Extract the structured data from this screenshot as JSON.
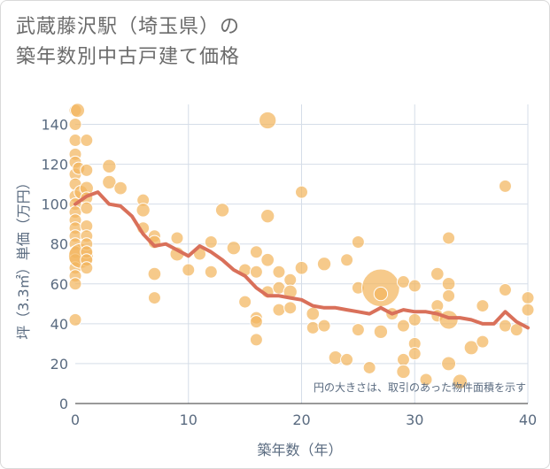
{
  "title_line1": "武蔵藤沢駅（埼玉県）の",
  "title_line2": "築年数別中古戸建て価格",
  "chart_data": {
    "type": "scatter",
    "title": "武蔵藤沢駅（埼玉県）の築年数別中古戸建て価格",
    "xlabel": "築年数（年）",
    "ylabel": "坪（3.3㎡）単価（万円）",
    "xlim": [
      0,
      40
    ],
    "ylim": [
      0,
      150
    ],
    "xticks": [
      "0",
      "10",
      "20",
      "30",
      "40"
    ],
    "yticks": [
      "0",
      "20",
      "40",
      "60",
      "80",
      "100",
      "120",
      "140"
    ],
    "note": "円の大きさは、取引のあった物件面積を示す",
    "bubble_color": "#f2b65e",
    "line_color": "#d9705a",
    "bubbles": [
      {
        "x": 0,
        "y": 147,
        "s": 1
      },
      {
        "x": 0,
        "y": 140,
        "s": 1
      },
      {
        "x": 0,
        "y": 132,
        "s": 1
      },
      {
        "x": 0,
        "y": 125,
        "s": 1
      },
      {
        "x": 0,
        "y": 121,
        "s": 1
      },
      {
        "x": 0,
        "y": 115,
        "s": 1
      },
      {
        "x": 0,
        "y": 110,
        "s": 1
      },
      {
        "x": 0,
        "y": 104,
        "s": 1
      },
      {
        "x": 0,
        "y": 100,
        "s": 1
      },
      {
        "x": 0,
        "y": 96,
        "s": 1
      },
      {
        "x": 0,
        "y": 92,
        "s": 1
      },
      {
        "x": 0,
        "y": 88,
        "s": 1
      },
      {
        "x": 0,
        "y": 84,
        "s": 1
      },
      {
        "x": 0,
        "y": 80,
        "s": 1
      },
      {
        "x": 0,
        "y": 76,
        "s": 1
      },
      {
        "x": 0,
        "y": 72,
        "s": 1
      },
      {
        "x": 0,
        "y": 68,
        "s": 1
      },
      {
        "x": 0,
        "y": 64,
        "s": 1
      },
      {
        "x": 0,
        "y": 60,
        "s": 1
      },
      {
        "x": 0,
        "y": 42,
        "s": 1
      },
      {
        "x": 0.2,
        "y": 147,
        "s": 1.3
      },
      {
        "x": 0.3,
        "y": 118,
        "s": 1
      },
      {
        "x": 0.5,
        "y": 106,
        "s": 1.2
      },
      {
        "x": 0.5,
        "y": 74,
        "s": 4
      },
      {
        "x": 1,
        "y": 132,
        "s": 1
      },
      {
        "x": 1,
        "y": 117,
        "s": 1
      },
      {
        "x": 1,
        "y": 108,
        "s": 1.2
      },
      {
        "x": 1,
        "y": 103,
        "s": 1
      },
      {
        "x": 1,
        "y": 98,
        "s": 1
      },
      {
        "x": 1,
        "y": 89,
        "s": 1
      },
      {
        "x": 1,
        "y": 84,
        "s": 1
      },
      {
        "x": 1,
        "y": 80,
        "s": 1
      },
      {
        "x": 1,
        "y": 76,
        "s": 1
      },
      {
        "x": 1,
        "y": 72,
        "s": 1
      },
      {
        "x": 1,
        "y": 68,
        "s": 1
      },
      {
        "x": 3,
        "y": 119,
        "s": 1.2
      },
      {
        "x": 3,
        "y": 111,
        "s": 1.2
      },
      {
        "x": 4,
        "y": 108,
        "s": 1.1
      },
      {
        "x": 6,
        "y": 102,
        "s": 1
      },
      {
        "x": 6,
        "y": 97,
        "s": 1.2
      },
      {
        "x": 6,
        "y": 88,
        "s": 1
      },
      {
        "x": 7,
        "y": 84,
        "s": 1
      },
      {
        "x": 7,
        "y": 81,
        "s": 1.1
      },
      {
        "x": 7,
        "y": 65,
        "s": 1.1
      },
      {
        "x": 7,
        "y": 53,
        "s": 1
      },
      {
        "x": 9,
        "y": 83,
        "s": 1
      },
      {
        "x": 9,
        "y": 75,
        "s": 1.3
      },
      {
        "x": 10,
        "y": 67,
        "s": 1
      },
      {
        "x": 11,
        "y": 75,
        "s": 1
      },
      {
        "x": 12,
        "y": 81,
        "s": 1
      },
      {
        "x": 12,
        "y": 66,
        "s": 1
      },
      {
        "x": 13,
        "y": 97,
        "s": 1.2
      },
      {
        "x": 14,
        "y": 78,
        "s": 1.2
      },
      {
        "x": 15,
        "y": 67,
        "s": 1
      },
      {
        "x": 15,
        "y": 51,
        "s": 1
      },
      {
        "x": 16,
        "y": 76,
        "s": 1
      },
      {
        "x": 16,
        "y": 66,
        "s": 1
      },
      {
        "x": 16,
        "y": 43,
        "s": 1
      },
      {
        "x": 16,
        "y": 41,
        "s": 1
      },
      {
        "x": 16,
        "y": 32,
        "s": 1
      },
      {
        "x": 17,
        "y": 142,
        "s": 1.9
      },
      {
        "x": 17,
        "y": 94,
        "s": 1.2
      },
      {
        "x": 17,
        "y": 72,
        "s": 1.1
      },
      {
        "x": 17,
        "y": 56,
        "s": 1
      },
      {
        "x": 18,
        "y": 66,
        "s": 1
      },
      {
        "x": 18,
        "y": 58,
        "s": 1
      },
      {
        "x": 18,
        "y": 47,
        "s": 1
      },
      {
        "x": 19,
        "y": 62,
        "s": 1
      },
      {
        "x": 19,
        "y": 56,
        "s": 1.2
      },
      {
        "x": 19,
        "y": 48,
        "s": 1
      },
      {
        "x": 20,
        "y": 106,
        "s": 1
      },
      {
        "x": 20,
        "y": 68,
        "s": 1.1
      },
      {
        "x": 21,
        "y": 45,
        "s": 1.1
      },
      {
        "x": 21,
        "y": 38,
        "s": 1
      },
      {
        "x": 22,
        "y": 70,
        "s": 1.2
      },
      {
        "x": 22,
        "y": 39,
        "s": 1
      },
      {
        "x": 23,
        "y": 23,
        "s": 1.2
      },
      {
        "x": 24,
        "y": 72,
        "s": 1
      },
      {
        "x": 24,
        "y": 22,
        "s": 1
      },
      {
        "x": 25,
        "y": 81,
        "s": 1
      },
      {
        "x": 25,
        "y": 58,
        "s": 1
      },
      {
        "x": 25,
        "y": 37,
        "s": 1
      },
      {
        "x": 26,
        "y": 18,
        "s": 1
      },
      {
        "x": 27,
        "y": 58,
        "s": 9.3
      },
      {
        "x": 27,
        "y": 55,
        "s": 1.2
      },
      {
        "x": 27,
        "y": 36,
        "s": 1.2
      },
      {
        "x": 28,
        "y": 45,
        "s": 1
      },
      {
        "x": 29,
        "y": 61,
        "s": 1
      },
      {
        "x": 29,
        "y": 39,
        "s": 1
      },
      {
        "x": 29,
        "y": 22,
        "s": 1
      },
      {
        "x": 29,
        "y": 16,
        "s": 1.2
      },
      {
        "x": 30,
        "y": 59,
        "s": 1
      },
      {
        "x": 30,
        "y": 42,
        "s": 1
      },
      {
        "x": 30,
        "y": 30,
        "s": 1
      },
      {
        "x": 30,
        "y": 25,
        "s": 1
      },
      {
        "x": 31,
        "y": 12,
        "s": 1
      },
      {
        "x": 32,
        "y": 65,
        "s": 1.1
      },
      {
        "x": 32,
        "y": 49,
        "s": 1
      },
      {
        "x": 32,
        "y": 44,
        "s": 1
      },
      {
        "x": 33,
        "y": 83,
        "s": 1
      },
      {
        "x": 33,
        "y": 60,
        "s": 1.1
      },
      {
        "x": 33,
        "y": 54,
        "s": 1
      },
      {
        "x": 33,
        "y": 42,
        "s": 2.3
      },
      {
        "x": 33,
        "y": 20,
        "s": 1.3
      },
      {
        "x": 34,
        "y": 11,
        "s": 1.4
      },
      {
        "x": 35,
        "y": 28,
        "s": 1.3
      },
      {
        "x": 36,
        "y": 49,
        "s": 1
      },
      {
        "x": 36,
        "y": 31,
        "s": 1
      },
      {
        "x": 38,
        "y": 109,
        "s": 1
      },
      {
        "x": 38,
        "y": 57,
        "s": 1
      },
      {
        "x": 38,
        "y": 39,
        "s": 1
      },
      {
        "x": 39,
        "y": 37,
        "s": 1
      },
      {
        "x": 40,
        "y": 53,
        "s": 1
      },
      {
        "x": 40,
        "y": 47,
        "s": 1
      }
    ],
    "line": {
      "x": [
        0,
        1,
        2,
        3,
        4,
        5,
        6,
        7,
        8,
        9,
        10,
        11,
        12,
        13,
        14,
        15,
        16,
        17,
        18,
        19,
        20,
        21,
        22,
        23,
        24,
        25,
        26,
        27,
        28,
        29,
        30,
        31,
        32,
        33,
        34,
        35,
        36,
        37,
        38,
        39,
        40
      ],
      "y": [
        100,
        104,
        106,
        100,
        99,
        94,
        85,
        79,
        80,
        77,
        74,
        79,
        76,
        72,
        67,
        64,
        58,
        54,
        54,
        53,
        52,
        49,
        48,
        48,
        47,
        46,
        45,
        48,
        45,
        47,
        46,
        46,
        45,
        43,
        43,
        42,
        40,
        40,
        46,
        41,
        38
      ]
    }
  }
}
